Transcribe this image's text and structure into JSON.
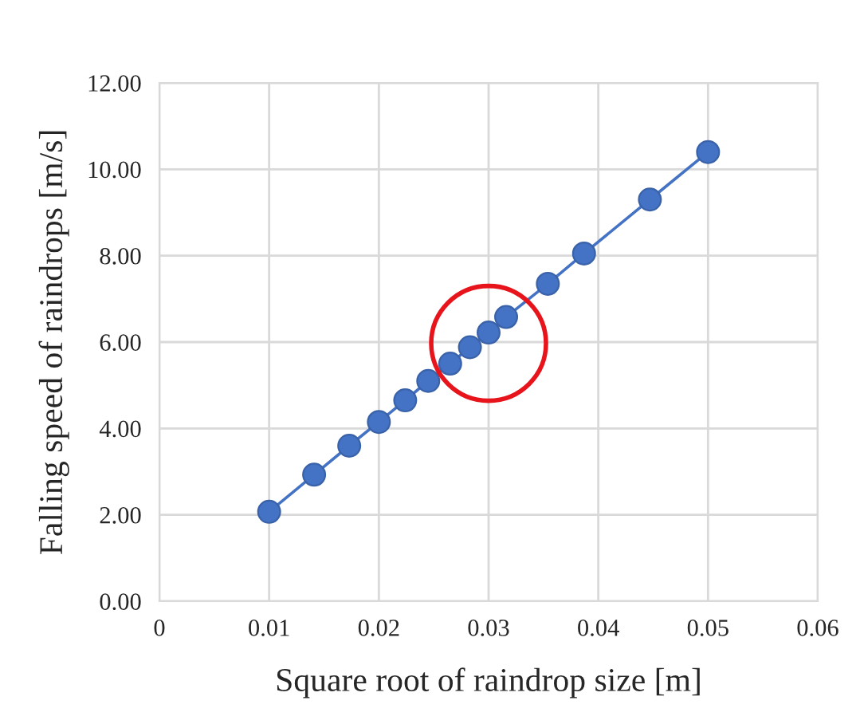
{
  "chart_data": {
    "type": "line",
    "xlabel": "Square root of raindrop size [m]",
    "ylabel": "Falling speed of raindrops [m/s]",
    "x": [
      0.01,
      0.0141,
      0.0173,
      0.02,
      0.0224,
      0.0245,
      0.0265,
      0.0283,
      0.03,
      0.0316,
      0.0354,
      0.0387,
      0.0447,
      0.05
    ],
    "series": [
      {
        "color": "#4472c4",
        "values": [
          2.07,
          2.93,
          3.6,
          4.15,
          4.65,
          5.1,
          5.5,
          5.88,
          6.22,
          6.58,
          7.35,
          8.05,
          9.3,
          10.4
        ]
      }
    ],
    "xlim": [
      0,
      0.06
    ],
    "ylim": [
      0,
      12
    ],
    "xticks": [
      0,
      0.01,
      0.02,
      0.03,
      0.04,
      0.05,
      0.06
    ],
    "yticks": [
      {
        "value": 0,
        "label": "0.00"
      },
      {
        "value": 2,
        "label": "2.00"
      },
      {
        "value": 4,
        "label": "4.00"
      },
      {
        "value": 6,
        "label": "6.00"
      },
      {
        "value": 8,
        "label": "8.00"
      },
      {
        "value": 10,
        "label": "10.00"
      },
      {
        "value": 12,
        "label": "12.00"
      }
    ],
    "grid": true,
    "marker": "circle",
    "line_style": "solid",
    "legend": false
  }
}
